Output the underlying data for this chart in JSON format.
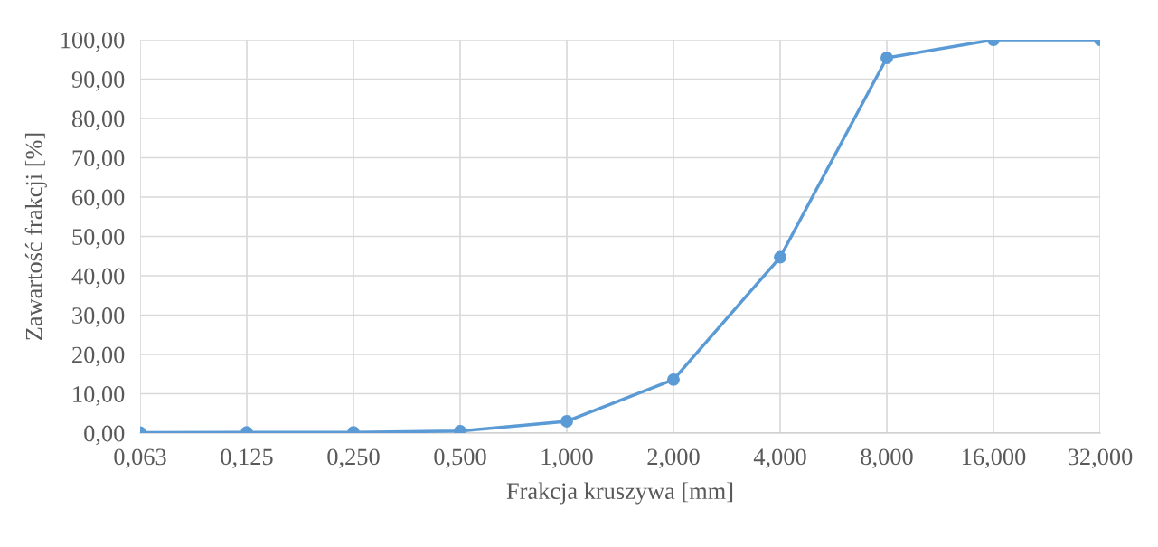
{
  "chart_data": {
    "type": "line",
    "xlabel": "Frakcja kruszywa [mm]",
    "ylabel": "Zawartość frakcji [%]",
    "categories": [
      "0,063",
      "0,125",
      "0,250",
      "0,500",
      "1,000",
      "2,000",
      "4,000",
      "8,000",
      "16,000",
      "32,000"
    ],
    "series": [
      {
        "color": "#5b9bd5",
        "values": [
          0.1,
          0.2,
          0.2,
          0.5,
          3.0,
          13.6,
          44.7,
          95.4,
          100,
          100
        ]
      }
    ],
    "ylim": [
      0,
      100
    ],
    "yticks": [
      {
        "value": 0,
        "label": "0,00"
      },
      {
        "value": 10,
        "label": "10,00"
      },
      {
        "value": 20,
        "label": "20,00"
      },
      {
        "value": 30,
        "label": "30,00"
      },
      {
        "value": 40,
        "label": "40,00"
      },
      {
        "value": 50,
        "label": "50,00"
      },
      {
        "value": 60,
        "label": "60,00"
      },
      {
        "value": 70,
        "label": "70,00"
      },
      {
        "value": 80,
        "label": "80,00"
      },
      {
        "value": 90,
        "label": "90,00"
      },
      {
        "value": 100,
        "label": "100,00"
      }
    ],
    "grid": true,
    "marker": "circle",
    "line_style": "solid"
  }
}
